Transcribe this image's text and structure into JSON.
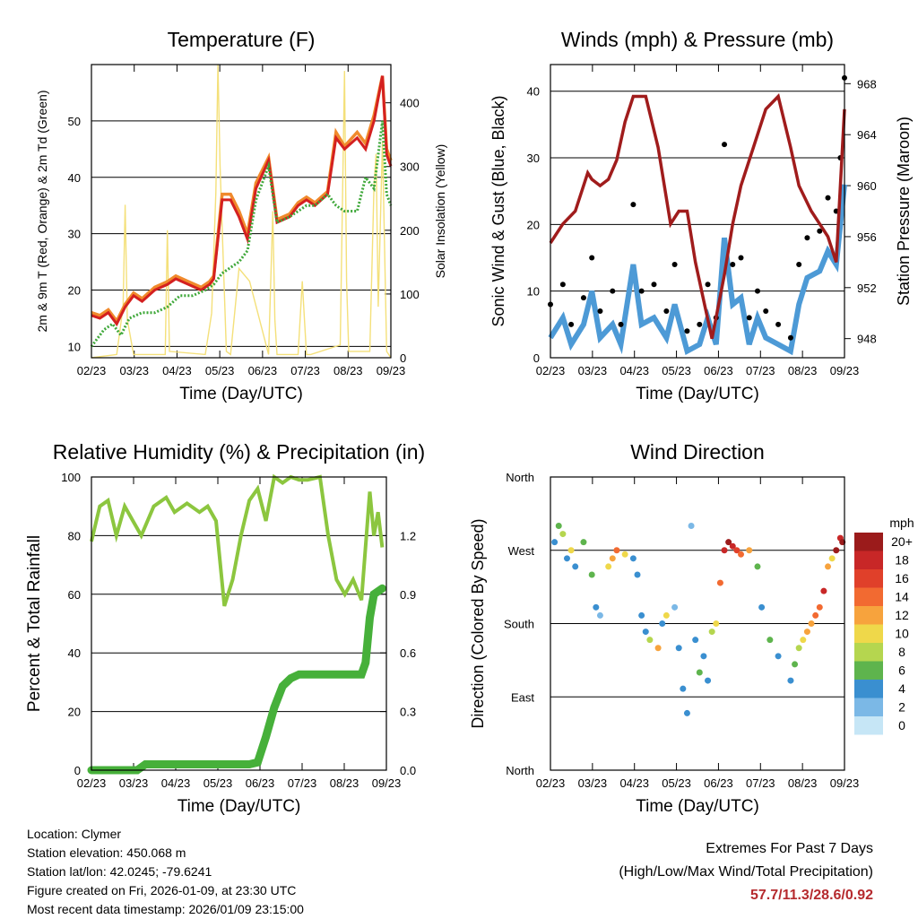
{
  "colors": {
    "red": "#d42020",
    "orange": "#f08a2c",
    "green_td": "#3fa83a",
    "yellow": "#f4e07a",
    "blue": "#4d9ad6",
    "black": "#000000",
    "maroon": "#a01c1c",
    "rh": "#8cc63f",
    "precip": "#46b03a",
    "extreme": "#b52a2e"
  },
  "chart_data": [
    {
      "id": "temperature",
      "type": "line",
      "title": "Temperature (F)",
      "xlabel": "Time (Day/UTC)",
      "ylabel": "2m & 9m T (Red, Orange) & 2m Td (Green)",
      "y2label": "Solar Insolation (Yellow)",
      "xticks": [
        "02/23",
        "03/23",
        "04/23",
        "05/23",
        "06/23",
        "07/23",
        "08/23",
        "09/23"
      ],
      "xlim": [
        0,
        7.1
      ],
      "ylim": [
        8,
        60
      ],
      "yticks": [
        10,
        20,
        30,
        40,
        50
      ],
      "y2lim": [
        0,
        460
      ],
      "y2ticks": [
        0,
        100,
        200,
        300,
        400
      ],
      "series": [
        {
          "name": "2m T (Red)",
          "x": [
            0,
            0.2,
            0.4,
            0.6,
            0.8,
            1.0,
            1.2,
            1.5,
            1.8,
            2.0,
            2.3,
            2.6,
            2.8,
            2.9,
            3.1,
            3.3,
            3.5,
            3.7,
            3.9,
            4.2,
            4.4,
            4.7,
            4.9,
            5.1,
            5.3,
            5.6,
            5.8,
            6.0,
            6.3,
            6.5,
            6.7,
            6.9,
            7.0,
            7.1
          ],
          "y": [
            15.5,
            15,
            16,
            14,
            17,
            19,
            18,
            20,
            21,
            22,
            21,
            20,
            21,
            22,
            36,
            36,
            33,
            29,
            38,
            43,
            32,
            33,
            35,
            36,
            35,
            37,
            47,
            45,
            47,
            45,
            50,
            58,
            44,
            42
          ]
        },
        {
          "name": "9m T (Orange)",
          "x": [
            0,
            0.2,
            0.4,
            0.6,
            0.8,
            1.0,
            1.2,
            1.5,
            1.8,
            2.0,
            2.3,
            2.6,
            2.8,
            2.9,
            3.1,
            3.3,
            3.5,
            3.7,
            3.9,
            4.2,
            4.4,
            4.7,
            4.9,
            5.1,
            5.3,
            5.6,
            5.8,
            6.0,
            6.3,
            6.5,
            6.7,
            6.9,
            7.0,
            7.1
          ],
          "y": [
            16,
            15.5,
            16.5,
            14.5,
            17.5,
            19.5,
            18.5,
            20.5,
            21.5,
            22.5,
            21.5,
            20.5,
            21.5,
            22.5,
            37,
            37,
            34,
            30,
            39,
            43.5,
            32.5,
            33.5,
            35.5,
            36.5,
            35.5,
            37.5,
            48,
            45.5,
            48,
            46,
            51,
            58,
            45,
            43
          ]
        },
        {
          "name": "2m Td (Green)",
          "x": [
            0,
            0.3,
            0.5,
            0.7,
            0.9,
            1.2,
            1.5,
            1.8,
            2.1,
            2.4,
            2.7,
            2.9,
            3.1,
            3.3,
            3.5,
            3.7,
            3.9,
            4.2,
            4.4,
            4.7,
            4.9,
            5.1,
            5.3,
            5.6,
            5.8,
            6.0,
            6.3,
            6.5,
            6.7,
            6.9,
            7.0,
            7.1
          ],
          "y": [
            10,
            13,
            14,
            12,
            15,
            16,
            16,
            17,
            19,
            19,
            20,
            21,
            23,
            24,
            25,
            27,
            36,
            42,
            32,
            33,
            34,
            35,
            35,
            37,
            35,
            34,
            34,
            40,
            38,
            50,
            37,
            35
          ]
        },
        {
          "name": "Solar Insolation (Yellow)",
          "axis": "y2",
          "x": [
            0,
            0.6,
            0.75,
            0.8,
            0.85,
            1.0,
            1.75,
            1.8,
            1.85,
            2.7,
            2.85,
            2.95,
            3.0,
            3.05,
            3.2,
            3.3,
            3.5,
            3.75,
            4.2,
            4.3,
            4.35,
            4.4,
            4.5,
            4.9,
            5.0,
            5.05,
            5.1,
            5.2,
            5.9,
            6.0,
            6.05,
            6.1,
            6.6,
            6.7,
            6.75,
            6.8,
            6.9,
            7.0,
            7.1
          ],
          "y": [
            0,
            5,
            80,
            240,
            60,
            5,
            5,
            200,
            10,
            5,
            70,
            260,
            460,
            300,
            10,
            5,
            140,
            120,
            5,
            230,
            60,
            5,
            5,
            5,
            120,
            60,
            5,
            5,
            20,
            450,
            120,
            10,
            10,
            270,
            320,
            80,
            340,
            10,
            0
          ]
        }
      ]
    },
    {
      "id": "winds",
      "type": "line",
      "title": "Winds (mph) & Pressure (mb)",
      "xlabel": "Time (Day/UTC)",
      "ylabel": "Sonic Wind & Gust (Blue, Black)",
      "y2label": "Station Pressure (Maroon)",
      "xticks": [
        "02/23",
        "03/23",
        "04/23",
        "05/23",
        "06/23",
        "07/23",
        "08/23",
        "09/23"
      ],
      "xlim": [
        0,
        7.1
      ],
      "ylim": [
        0,
        44
      ],
      "yticks": [
        0,
        10,
        20,
        30,
        40
      ],
      "y2lim": [
        946.5,
        969.5
      ],
      "y2ticks": [
        948,
        952,
        956,
        960,
        964,
        968
      ],
      "series": [
        {
          "name": "Sonic Wind (Blue)",
          "x": [
            0,
            0.3,
            0.5,
            0.8,
            1.0,
            1.2,
            1.5,
            1.7,
            2.0,
            2.2,
            2.5,
            2.8,
            3.0,
            3.3,
            3.6,
            3.8,
            4.0,
            4.2,
            4.4,
            4.6,
            4.8,
            5.0,
            5.2,
            5.5,
            5.8,
            6.0,
            6.2,
            6.5,
            6.7,
            6.9,
            7.0,
            7.1
          ],
          "y": [
            3,
            6,
            2,
            5,
            10,
            3,
            5,
            2,
            14,
            5,
            6,
            3,
            8,
            1,
            2,
            6,
            2,
            18,
            8,
            9,
            2,
            6,
            3,
            2,
            1,
            8,
            12,
            13,
            16,
            14,
            20,
            26
          ]
        },
        {
          "name": "Gust (Black)",
          "x": [
            0,
            0.3,
            0.5,
            0.8,
            1.0,
            1.2,
            1.5,
            1.7,
            2.0,
            2.2,
            2.5,
            2.8,
            3.0,
            3.3,
            3.6,
            3.8,
            4.0,
            4.2,
            4.4,
            4.6,
            4.8,
            5.0,
            5.2,
            5.5,
            5.8,
            6.0,
            6.2,
            6.5,
            6.7,
            6.9,
            7.0,
            7.1
          ],
          "y": [
            8,
            11,
            5,
            9,
            15,
            7,
            10,
            5,
            23,
            10,
            11,
            7,
            14,
            4,
            5,
            11,
            6,
            32,
            14,
            15,
            6,
            10,
            7,
            5,
            3,
            14,
            18,
            19,
            24,
            22,
            30,
            42
          ]
        },
        {
          "name": "Station Pressure (Maroon)",
          "axis": "y2",
          "x": [
            0,
            0.3,
            0.6,
            0.9,
            1.0,
            1.2,
            1.4,
            1.6,
            1.8,
            2.0,
            2.3,
            2.6,
            2.9,
            3.1,
            3.3,
            3.5,
            3.7,
            3.9,
            4.2,
            4.4,
            4.6,
            4.9,
            5.2,
            5.5,
            5.8,
            6.0,
            6.3,
            6.5,
            6.7,
            6.9,
            7.0,
            7.1
          ],
          "y": [
            955.5,
            957,
            958,
            961,
            960.5,
            960,
            960.5,
            962,
            965,
            967,
            967,
            963,
            957,
            958,
            958,
            954,
            951,
            948,
            953,
            957,
            960,
            963,
            966,
            967,
            963,
            960,
            958,
            957,
            956,
            954,
            960,
            966
          ]
        }
      ]
    },
    {
      "id": "humidity",
      "type": "line",
      "title": "Relative Humidity (%) & Precipitation (in)",
      "xlabel": "Time (Day/UTC)",
      "ylabel": "Percent & Total Rainfall",
      "xticks": [
        "02/23",
        "03/23",
        "04/23",
        "05/23",
        "06/23",
        "07/23",
        "08/23",
        "09/23"
      ],
      "xlim": [
        0,
        7.1
      ],
      "ylim": [
        0,
        100
      ],
      "yticks": [
        0,
        20,
        40,
        60,
        80,
        100
      ],
      "y2lim": [
        0,
        1.5
      ],
      "y2ticks": [
        "0.0",
        "0.3",
        "0.6",
        "0.9",
        "1.2"
      ],
      "series": [
        {
          "name": "Relative Humidity",
          "x": [
            0,
            0.2,
            0.4,
            0.6,
            0.8,
            1.0,
            1.2,
            1.5,
            1.8,
            2.0,
            2.3,
            2.6,
            2.8,
            3.0,
            3.2,
            3.4,
            3.6,
            3.8,
            4.0,
            4.2,
            4.4,
            4.6,
            4.8,
            5.0,
            5.2,
            5.5,
            5.7,
            5.9,
            6.1,
            6.3,
            6.5,
            6.7,
            6.8,
            6.9,
            7.0
          ],
          "y": [
            78,
            90,
            92,
            80,
            90,
            85,
            80,
            90,
            93,
            88,
            91,
            88,
            90,
            85,
            56,
            65,
            80,
            92,
            96,
            85,
            100,
            98,
            100,
            99,
            99,
            100,
            80,
            65,
            60,
            65,
            58,
            95,
            80,
            88,
            76
          ]
        },
        {
          "name": "Total Precipitation",
          "axis": "y2",
          "x": [
            0,
            1.1,
            1.3,
            2.5,
            3.5,
            3.8,
            4.0,
            4.2,
            4.4,
            4.6,
            4.8,
            5.0,
            5.5,
            6.0,
            6.5,
            6.6,
            6.7,
            6.8,
            7.0
          ],
          "y": [
            0,
            0,
            0.03,
            0.03,
            0.03,
            0.03,
            0.04,
            0.17,
            0.32,
            0.43,
            0.47,
            0.49,
            0.49,
            0.49,
            0.49,
            0.55,
            0.78,
            0.9,
            0.93
          ]
        }
      ]
    },
    {
      "id": "direction",
      "type": "scatter",
      "title": "Wind Direction",
      "xlabel": "Time (Day/UTC)",
      "ylabel": "Direction (Colored By Speed)",
      "xticks": [
        "02/23",
        "03/23",
        "04/23",
        "05/23",
        "06/23",
        "07/23",
        "08/23",
        "09/23"
      ],
      "xlim": [
        0,
        7.1
      ],
      "ylim": [
        0,
        360
      ],
      "ycats": [
        "North",
        "East",
        "South",
        "West",
        "North"
      ],
      "legend_title": "mph",
      "legend_labels": [
        "20+",
        "18",
        "16",
        "14",
        "12",
        "10",
        "8",
        "6",
        "4",
        "2",
        "0"
      ],
      "legend_colors": [
        "#9b1b1b",
        "#c82727",
        "#e0402a",
        "#f26a31",
        "#f7a33d",
        "#efd84a",
        "#b5d64f",
        "#5eb44d",
        "#3a8fd0",
        "#7bb8e6",
        "#c6e6f6"
      ],
      "x": [
        0.1,
        0.2,
        0.3,
        0.4,
        0.5,
        0.6,
        0.8,
        1.0,
        1.1,
        1.2,
        1.4,
        1.5,
        1.6,
        1.8,
        2.0,
        2.1,
        2.2,
        2.3,
        2.4,
        2.6,
        2.7,
        2.8,
        3.0,
        3.1,
        3.2,
        3.3,
        3.4,
        3.5,
        3.6,
        3.7,
        3.8,
        3.9,
        4.0,
        4.1,
        4.2,
        4.3,
        4.4,
        4.5,
        4.6,
        4.8,
        5.0,
        5.1,
        5.3,
        5.5,
        5.8,
        5.9,
        6.0,
        6.1,
        6.2,
        6.3,
        6.4,
        6.5,
        6.6,
        6.7,
        6.8,
        6.9,
        7.0,
        7.05
      ],
      "y": [
        280,
        300,
        290,
        260,
        270,
        250,
        280,
        240,
        200,
        190,
        250,
        260,
        270,
        265,
        260,
        240,
        190,
        170,
        160,
        150,
        180,
        190,
        200,
        150,
        100,
        70,
        300,
        160,
        120,
        140,
        110,
        170,
        180,
        230,
        270,
        280,
        275,
        270,
        265,
        270,
        250,
        200,
        160,
        140,
        110,
        130,
        150,
        160,
        170,
        180,
        190,
        200,
        220,
        250,
        260,
        270,
        285,
        280
      ],
      "s": [
        4,
        6,
        8,
        4,
        9,
        4,
        5,
        6,
        3,
        2,
        10,
        12,
        14,
        10,
        3,
        4,
        4,
        3,
        8,
        12,
        4,
        10,
        2,
        3,
        4,
        3,
        1,
        4,
        6,
        4,
        3,
        8,
        10,
        14,
        18,
        20,
        18,
        16,
        14,
        12,
        6,
        4,
        6,
        4,
        4,
        6,
        8,
        10,
        12,
        12,
        14,
        14,
        18,
        12,
        10,
        20,
        18,
        22
      ]
    }
  ],
  "info": {
    "location": "Location: Clymer",
    "elevation": "Station elevation: 450.068 m",
    "latlon": "Station lat/lon: 42.0245; -79.6241",
    "created": "Figure created on Fri, 2026-01-09, at 23:30 UTC",
    "timestamp": "Most recent data timestamp: 2026/01/09 23:15:00"
  },
  "extremes": {
    "title": "Extremes For Past 7 Days",
    "subtitle": "(High/Low/Max Wind/Total Precipitation)",
    "values": "57.7/11.3/28.6/0.92"
  }
}
